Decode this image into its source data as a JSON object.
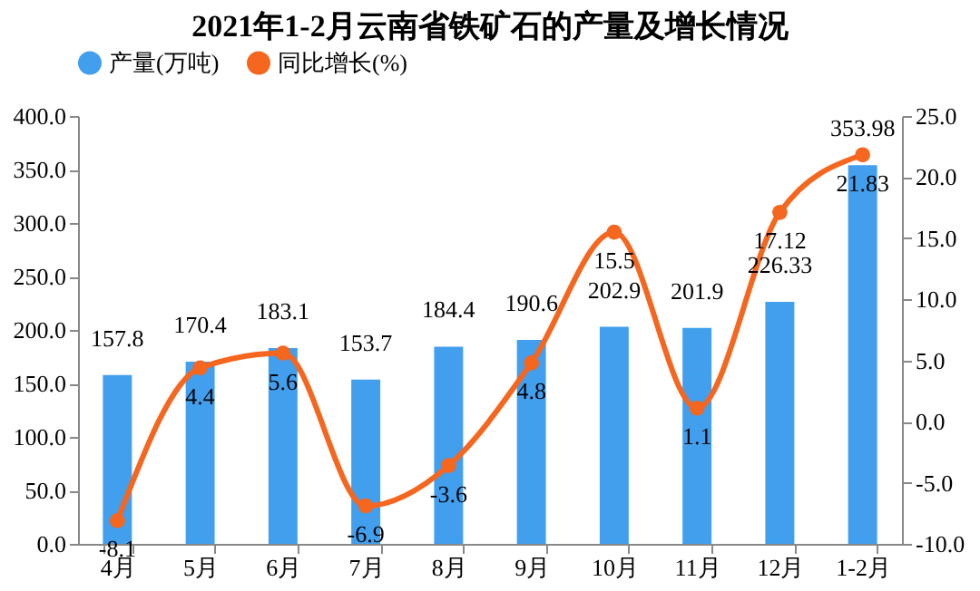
{
  "chart_data": {
    "type": "bar",
    "title": "2021年1-2月云南省铁矿石的产量及增长情况",
    "categories": [
      "4月",
      "5月",
      "6月",
      "7月",
      "8月",
      "9月",
      "10月",
      "11月",
      "12月",
      "1-2月"
    ],
    "series": [
      {
        "name": "产量(万吨)",
        "color": "#419fee",
        "values": [
          157.8,
          170.4,
          183.1,
          153.7,
          184.4,
          190.6,
          202.9,
          201.9,
          226.33,
          353.98
        ]
      },
      {
        "name": "同比增长(%)",
        "type": "line",
        "axis": "y2",
        "color": "#f5661f",
        "values": [
          -8.1,
          4.4,
          5.6,
          -6.9,
          -3.6,
          4.8,
          15.5,
          1.1,
          17.12,
          21.83
        ]
      }
    ],
    "ylim": [
      0,
      400
    ],
    "yticks": [
      {
        "value": 0,
        "label": "0.0"
      },
      {
        "value": 50,
        "label": "50.0"
      },
      {
        "value": 100,
        "label": "100.0"
      },
      {
        "value": 150,
        "label": "150.0"
      },
      {
        "value": 200,
        "label": "200.0"
      },
      {
        "value": 250,
        "label": "250.0"
      },
      {
        "value": 300,
        "label": "300.0"
      },
      {
        "value": 350,
        "label": "350.0"
      },
      {
        "value": 400,
        "label": "400.0"
      }
    ],
    "y2lim": [
      -10,
      25
    ],
    "y2ticks": [
      {
        "value": -10,
        "label": "-10.0"
      },
      {
        "value": -5,
        "label": "-5.0"
      },
      {
        "value": 0,
        "label": "0.0"
      },
      {
        "value": 5,
        "label": "5.0"
      },
      {
        "value": 10,
        "label": "10.0"
      },
      {
        "value": 15,
        "label": "15.0"
      },
      {
        "value": 20,
        "label": "20.0"
      },
      {
        "value": 25,
        "label": "25.0"
      }
    ],
    "legend": "top",
    "marker": "circle",
    "data_labels": true
  }
}
